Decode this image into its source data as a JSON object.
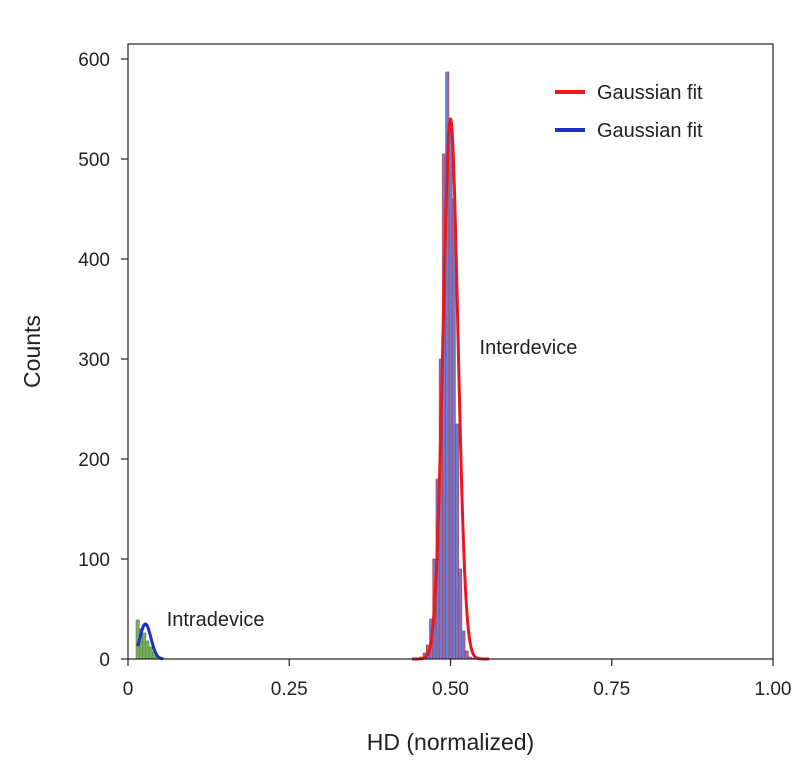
{
  "chart_data": {
    "type": "histogram",
    "title": "",
    "xlabel": "HD (normalized)",
    "ylabel": "Counts",
    "xlim": [
      0,
      1.0
    ],
    "ylim": [
      0,
      615
    ],
    "xticks": [
      0,
      0.25,
      0.5,
      0.75,
      1.0
    ],
    "xtick_labels": [
      "0",
      "0.25",
      "0.50",
      "0.75",
      "1.00"
    ],
    "yticks": [
      0,
      100,
      200,
      300,
      400,
      500,
      600
    ],
    "ytick_labels": [
      "0",
      "100",
      "200",
      "300",
      "400",
      "500",
      "600"
    ],
    "grid": false,
    "legend": {
      "position": "top-right",
      "entries": [
        {
          "label": "Gaussian fit",
          "color": "#e8191e"
        },
        {
          "label": "Gaussian fit",
          "color": "#1c2fc7"
        }
      ]
    },
    "annotations": [
      {
        "text": "Interdevice",
        "x": 0.545,
        "y": 305
      },
      {
        "text": "Intradevice",
        "x": 0.06,
        "y": 33
      }
    ],
    "series": [
      {
        "name": "Interdevice",
        "kind": "bars",
        "fill": "#5b6ed0",
        "stroke": "#c23b42",
        "bin_width": 0.005,
        "x": [
          0.455,
          0.46,
          0.465,
          0.47,
          0.475,
          0.48,
          0.485,
          0.49,
          0.495,
          0.5,
          0.505,
          0.51,
          0.515,
          0.52,
          0.525,
          0.53,
          0.535
        ],
        "values": [
          2,
          6,
          14,
          40,
          100,
          180,
          300,
          505,
          587,
          535,
          460,
          235,
          90,
          28,
          8,
          2,
          1
        ]
      },
      {
        "name": "Intradevice",
        "kind": "bars",
        "fill": "#6aa84f",
        "stroke": "#5a7f45",
        "bin_width": 0.005,
        "x": [
          0.015,
          0.02,
          0.025,
          0.03,
          0.035,
          0.04,
          0.045,
          0.05
        ],
        "values": [
          39,
          30,
          26,
          18,
          12,
          7,
          3,
          1
        ]
      },
      {
        "name": "Gaussian fit",
        "kind": "curve",
        "color": "#e8191e",
        "mean": 0.5,
        "amplitude": 540,
        "sigma": 0.0115,
        "x_range": [
          0.44,
          0.56
        ]
      },
      {
        "name": "Gaussian fit",
        "kind": "curve",
        "color": "#1c2fc7",
        "mean": 0.027,
        "amplitude": 35,
        "sigma": 0.0085,
        "x_range": [
          0.015,
          0.055
        ]
      }
    ]
  }
}
